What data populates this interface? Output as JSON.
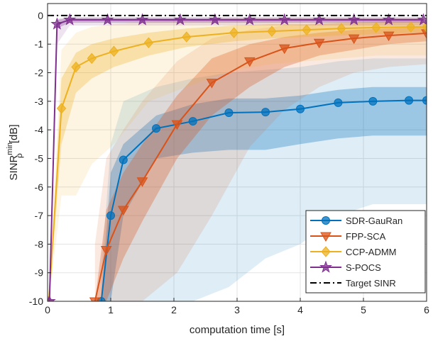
{
  "chart_data": {
    "type": "line",
    "xlabel": "computation time [s]",
    "ylabel": {
      "base": "SINR",
      "sup": "min",
      "sub": "ρ",
      "unit": "[dB]"
    },
    "xlim": [
      0,
      6
    ],
    "ylim": [
      -10,
      0.42
    ],
    "xticks": [
      0,
      1,
      2,
      3,
      4,
      5,
      6
    ],
    "yticks": [
      -10,
      -9,
      -8,
      -7,
      -6,
      -5,
      -4,
      -3,
      -2,
      -1,
      0
    ],
    "grid": true,
    "legend": "lower right",
    "series": [
      {
        "name": "SDR-GauRan",
        "color": "#0072bd",
        "marker": "circle",
        "x": [
          0.85,
          1.0,
          1.2,
          1.72,
          2.3,
          2.87,
          3.45,
          4.0,
          4.6,
          5.15,
          5.72,
          6
        ],
        "values": [
          -10,
          -7,
          -5.05,
          -3.95,
          -3.7,
          -3.4,
          -3.38,
          -3.27,
          -3.05,
          -3.0,
          -2.97,
          -2.97
        ],
        "inner_lower": [
          -10,
          -10,
          -7,
          -5,
          -4.8,
          -4.7,
          -4.7,
          -4.5,
          -4.3,
          -4.2,
          -4.2,
          -4.2
        ],
        "inner_upper": [
          -10,
          -5.5,
          -4.5,
          -3.5,
          -3.1,
          -2.9,
          -2.9,
          -2.8,
          -2.6,
          -2.5,
          -2.5,
          -2.5
        ],
        "outer_lower": [
          -10,
          -10,
          -10,
          -10,
          -10,
          -9.5,
          -8.5,
          -8,
          -7,
          -6.6,
          -6.6,
          -6.6
        ],
        "outer_upper": [
          -9,
          -4.5,
          -3,
          -2.5,
          -2.2,
          -2.0,
          -1.9,
          -1.8,
          -1.6,
          -1.5,
          -1.5,
          -1.5
        ]
      },
      {
        "name": "FPP-SCA",
        "color": "#d95319",
        "marker": "triangle-down",
        "x": [
          0.75,
          0.93,
          1.2,
          1.5,
          2.05,
          2.6,
          3.2,
          3.75,
          4.3,
          4.85,
          5.4,
          6
        ],
        "values": [
          -10,
          -8.2,
          -6.8,
          -5.8,
          -3.8,
          -2.35,
          -1.6,
          -1.15,
          -0.95,
          -0.8,
          -0.7,
          -0.62
        ],
        "inner_lower": [
          -10,
          -10,
          -8.5,
          -7.2,
          -5,
          -3.5,
          -2.5,
          -1.8,
          -1.4,
          -1.2,
          -1,
          -0.9
        ],
        "inner_upper": [
          -10,
          -6.8,
          -5.5,
          -4.5,
          -2.8,
          -1.5,
          -1.0,
          -0.75,
          -0.6,
          -0.5,
          -0.45,
          -0.4
        ],
        "outer_lower": [
          -10,
          -10,
          -10,
          -10,
          -9,
          -7,
          -4.6,
          -3.3,
          -2.5,
          -2,
          -1.8,
          -1.7
        ],
        "outer_upper": [
          -8,
          -5,
          -4,
          -3,
          -1.6,
          -0.8,
          -0.5,
          -0.35,
          -0.3,
          -0.25,
          -0.2,
          -0.2
        ]
      },
      {
        "name": "CCP-ADMM",
        "color": "#edb120",
        "marker": "diamond",
        "x": [
          0.02,
          0.22,
          0.45,
          0.7,
          1.05,
          1.6,
          2.2,
          2.95,
          3.55,
          4.1,
          4.65,
          5.2,
          5.75,
          6
        ],
        "values": [
          -10,
          -3.25,
          -1.8,
          -1.5,
          -1.25,
          -0.95,
          -0.75,
          -0.6,
          -0.55,
          -0.5,
          -0.45,
          -0.42,
          -0.4,
          -0.4
        ],
        "inner_lower": [
          -10,
          -4.5,
          -2.7,
          -2.2,
          -1.8,
          -1.4,
          -1.1,
          -0.9,
          -0.8,
          -0.75,
          -0.7,
          -0.65,
          -0.6,
          -0.6
        ],
        "inner_upper": [
          -10,
          -2.2,
          -1.3,
          -1.0,
          -0.8,
          -0.6,
          -0.45,
          -0.35,
          -0.3,
          -0.3,
          -0.25,
          -0.25,
          -0.25,
          -0.25
        ],
        "outer_lower": [
          -10,
          -6.3,
          -6.3,
          -5.2,
          -4.5,
          -3,
          -2.5,
          -1.9,
          -1.7,
          -1.6,
          -1.5,
          -1.4,
          -1.4,
          -1.4
        ],
        "outer_upper": [
          -10,
          -1.2,
          -0.6,
          -0.4,
          -0.3,
          -0.2,
          -0.15,
          -0.1,
          -0.1,
          -0.1,
          -0.1,
          -0.1,
          -0.1,
          -0.1
        ]
      },
      {
        "name": "S-POCS",
        "color": "#7e2f8e",
        "marker": "star",
        "x": [
          0.03,
          0.15,
          0.35,
          0.95,
          1.5,
          2.1,
          2.65,
          3.2,
          3.75,
          4.3,
          4.85,
          5.4,
          5.95
        ],
        "values": [
          -10,
          -0.3,
          -0.15,
          -0.15,
          -0.15,
          -0.15,
          -0.15,
          -0.15,
          -0.15,
          -0.15,
          -0.15,
          -0.15,
          -0.15
        ],
        "inner_lower": [
          -10,
          -0.45,
          -0.25,
          -0.25,
          -0.25,
          -0.25,
          -0.25,
          -0.25,
          -0.25,
          -0.25,
          -0.25,
          -0.25,
          -0.25
        ],
        "inner_upper": [
          -10,
          -0.15,
          -0.08,
          -0.08,
          -0.08,
          -0.08,
          -0.08,
          -0.08,
          -0.08,
          -0.08,
          -0.08,
          -0.08,
          -0.08
        ],
        "outer_lower": [
          -10,
          -1,
          -0.35,
          -0.35,
          -0.35,
          -0.35,
          -0.35,
          -0.35,
          -0.35,
          -0.35,
          -0.35,
          -0.35,
          -0.35
        ],
        "outer_upper": [
          -9,
          -0.1,
          -0.05,
          -0.05,
          -0.05,
          -0.05,
          -0.05,
          -0.05,
          -0.05,
          -0.05,
          -0.05,
          -0.05,
          -0.05
        ]
      },
      {
        "name": "Target SINR",
        "color": "#000000",
        "marker": "none",
        "dash": "dashdot",
        "x": [
          0,
          6
        ],
        "values": [
          0,
          0
        ]
      }
    ]
  }
}
